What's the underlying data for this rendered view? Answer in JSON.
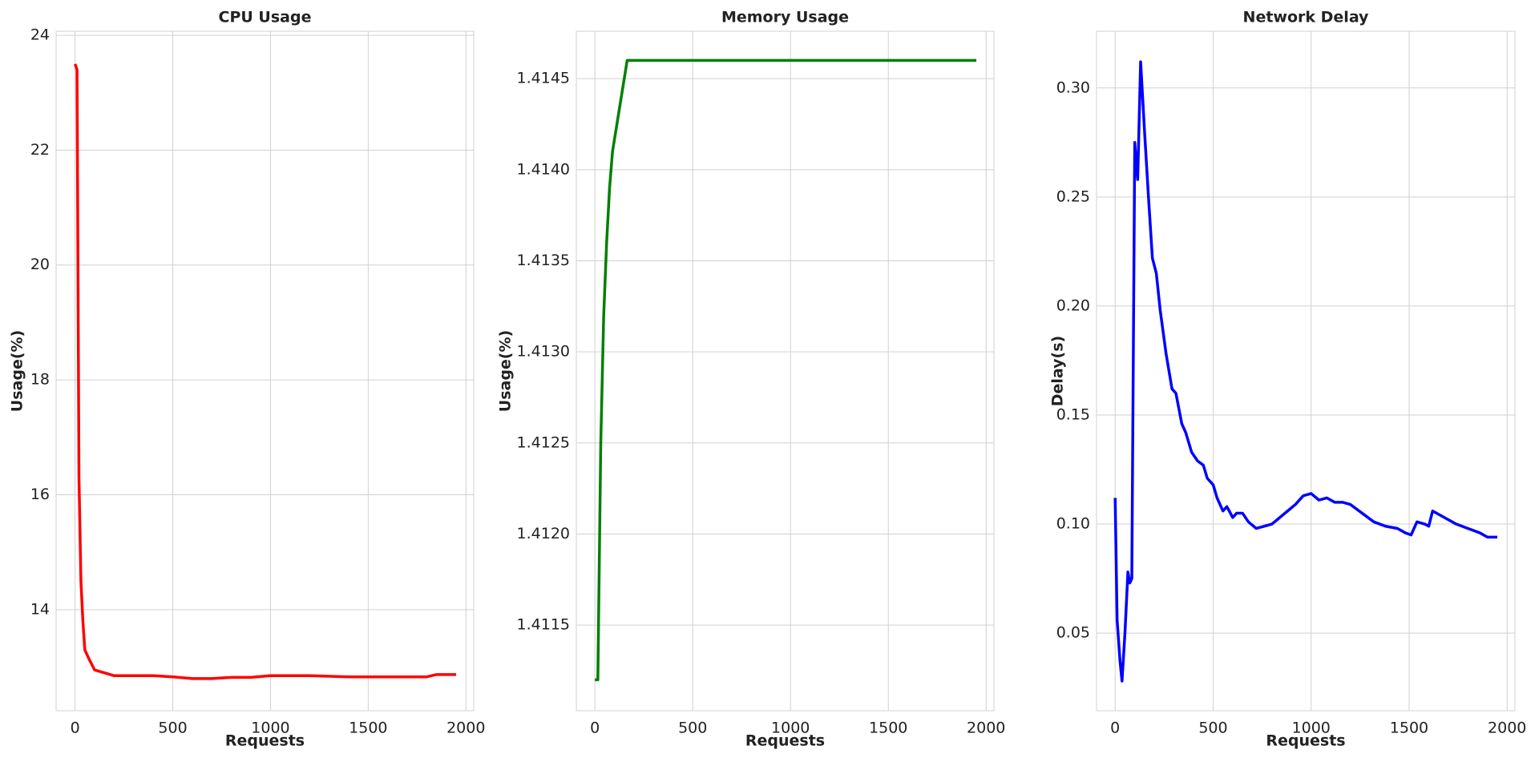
{
  "chart_data": [
    {
      "type": "line",
      "title": "CPU Usage",
      "xlabel": "Requests",
      "ylabel": "Usage(%)",
      "x": [
        0,
        10,
        20,
        30,
        40,
        50,
        70,
        100,
        150,
        200,
        300,
        400,
        500,
        600,
        700,
        800,
        900,
        1000,
        1200,
        1400,
        1600,
        1800,
        1850,
        1950
      ],
      "series": [
        {
          "name": "CPU Usage",
          "color": "#ff0000",
          "values": [
            23.5,
            23.4,
            16.3,
            14.5,
            13.8,
            13.3,
            13.15,
            12.95,
            12.9,
            12.85,
            12.85,
            12.85,
            12.83,
            12.8,
            12.8,
            12.82,
            12.82,
            12.85,
            12.85,
            12.83,
            12.83,
            12.83,
            12.87,
            12.87
          ]
        }
      ],
      "xlim": [
        -97,
        2040
      ],
      "xticks": [
        0,
        500,
        1000,
        1500,
        2000
      ],
      "ylim": [
        12.24,
        24.07
      ],
      "yticks": [
        14,
        16,
        18,
        20,
        22,
        24
      ],
      "grid": true
    },
    {
      "type": "line",
      "title": "Memory Usage",
      "xlabel": "Requests",
      "ylabel": "Usage(%)",
      "x": [
        0,
        15,
        30,
        45,
        60,
        75,
        90,
        165,
        1950
      ],
      "series": [
        {
          "name": "Memory Usage",
          "color": "#008000",
          "values": [
            1.4112,
            1.4112,
            1.4125,
            1.4132,
            1.4136,
            1.4139,
            1.4141,
            1.4146,
            1.4146
          ]
        }
      ],
      "xlim": [
        -95,
        2040
      ],
      "xticks": [
        0,
        500,
        1000,
        1500,
        2000
      ],
      "ylim": [
        1.41103,
        1.41476
      ],
      "yticks": [
        1.4115,
        {
          "value": 1.412,
          "label": "1.4120"
        },
        1.4125,
        {
          "value": 1.413,
          "label": "1.4130"
        },
        1.4135,
        {
          "value": 1.414,
          "label": "1.4140"
        },
        1.4145
      ],
      "grid": true
    },
    {
      "type": "line",
      "title": "Network Delay",
      "xlabel": "Requests",
      "ylabel": "Delay(s)",
      "x": [
        0,
        10,
        25,
        35,
        50,
        65,
        75,
        85,
        100,
        115,
        130,
        150,
        170,
        190,
        210,
        230,
        260,
        290,
        310,
        340,
        360,
        390,
        420,
        450,
        470,
        500,
        520,
        550,
        570,
        600,
        620,
        650,
        680,
        720,
        760,
        800,
        840,
        880,
        920,
        960,
        1000,
        1040,
        1080,
        1120,
        1160,
        1200,
        1260,
        1320,
        1380,
        1440,
        1480,
        1510,
        1540,
        1580,
        1600,
        1620,
        1680,
        1740,
        1800,
        1860,
        1900,
        1950
      ],
      "series": [
        {
          "name": "Network Delay",
          "color": "#0000ff",
          "values": [
            0.112,
            0.056,
            0.037,
            0.028,
            0.05,
            0.078,
            0.073,
            0.075,
            0.275,
            0.258,
            0.312,
            0.28,
            0.25,
            0.222,
            0.215,
            0.198,
            0.178,
            0.162,
            0.16,
            0.146,
            0.142,
            0.133,
            0.129,
            0.127,
            0.121,
            0.118,
            0.112,
            0.106,
            0.108,
            0.103,
            0.105,
            0.105,
            0.101,
            0.098,
            0.099,
            0.1,
            0.103,
            0.106,
            0.109,
            0.113,
            0.114,
            0.111,
            0.112,
            0.11,
            0.11,
            0.109,
            0.105,
            0.101,
            0.099,
            0.098,
            0.096,
            0.095,
            0.101,
            0.1,
            0.099,
            0.106,
            0.103,
            0.1,
            0.098,
            0.096,
            0.094,
            0.094
          ]
        }
      ],
      "xlim": [
        -95,
        2040
      ],
      "xticks": [
        0,
        500,
        1000,
        1500,
        2000
      ],
      "ylim": [
        0.0144,
        0.326
      ],
      "yticks": [
        0.05,
        {
          "value": 0.1,
          "label": "0.10"
        },
        0.15,
        {
          "value": 0.2,
          "label": "0.20"
        },
        0.25,
        {
          "value": 0.3,
          "label": "0.30"
        }
      ],
      "grid": true
    }
  ]
}
